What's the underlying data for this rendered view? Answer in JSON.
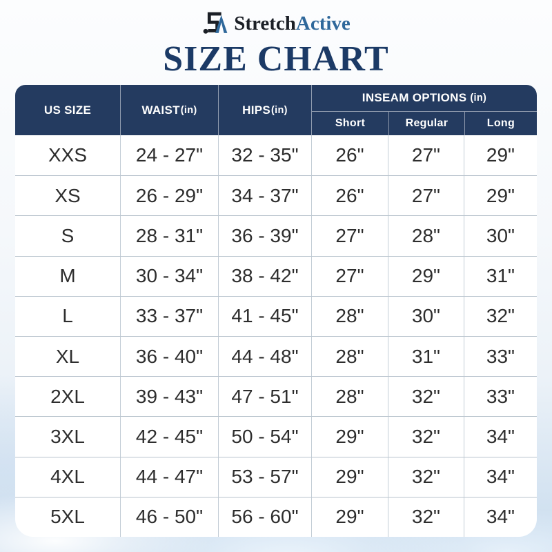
{
  "brand": {
    "name_part1": "Stretch",
    "name_part2": "Active",
    "logo_icon": "sa-monogram-icon"
  },
  "title": "SIZE CHART",
  "colors": {
    "header_bg": "#243B60",
    "title_text": "#1B3A66",
    "brand_dark": "#1B1F26",
    "brand_blue": "#2F689B",
    "table_bg": "#FFFFFF",
    "cell_text": "#2D2D2D",
    "row_border": "#B7C2CC",
    "background_sky": "#C9DCEE"
  },
  "table": {
    "columns": [
      {
        "label": "US SIZE",
        "unit": ""
      },
      {
        "label": "WAIST",
        "unit": "(in)"
      },
      {
        "label": "HIPS",
        "unit": "(in)"
      }
    ],
    "inseam_group": {
      "label": "INSEAM OPTIONS",
      "unit": "(in)",
      "subcolumns": [
        "Short",
        "Regular",
        "Long"
      ]
    },
    "rows": [
      {
        "size": "XXS",
        "waist": "24 - 27\"",
        "hips": "32 - 35\"",
        "short": "26\"",
        "regular": "27\"",
        "long": "29\""
      },
      {
        "size": "XS",
        "waist": "26 - 29\"",
        "hips": "34 - 37\"",
        "short": "26\"",
        "regular": "27\"",
        "long": "29\""
      },
      {
        "size": "S",
        "waist": "28 - 31\"",
        "hips": "36 - 39\"",
        "short": "27\"",
        "regular": "28\"",
        "long": "30\""
      },
      {
        "size": "M",
        "waist": "30 - 34\"",
        "hips": "38 - 42\"",
        "short": "27\"",
        "regular": "29\"",
        "long": "31\""
      },
      {
        "size": "L",
        "waist": "33 - 37\"",
        "hips": "41 - 45\"",
        "short": "28\"",
        "regular": "30\"",
        "long": "32\""
      },
      {
        "size": "XL",
        "waist": "36 - 40\"",
        "hips": "44 - 48\"",
        "short": "28\"",
        "regular": "31\"",
        "long": "33\""
      },
      {
        "size": "2XL",
        "waist": "39 - 43\"",
        "hips": "47 - 51\"",
        "short": "28\"",
        "regular": "32\"",
        "long": "33\""
      },
      {
        "size": "3XL",
        "waist": "42 - 45\"",
        "hips": "50 - 54\"",
        "short": "29\"",
        "regular": "32\"",
        "long": "34\""
      },
      {
        "size": "4XL",
        "waist": "44 - 47\"",
        "hips": "53 - 57\"",
        "short": "29\"",
        "regular": "32\"",
        "long": "34\""
      },
      {
        "size": "5XL",
        "waist": "46 - 50\"",
        "hips": "56 - 60\"",
        "short": "29\"",
        "regular": "32\"",
        "long": "34\""
      }
    ]
  }
}
